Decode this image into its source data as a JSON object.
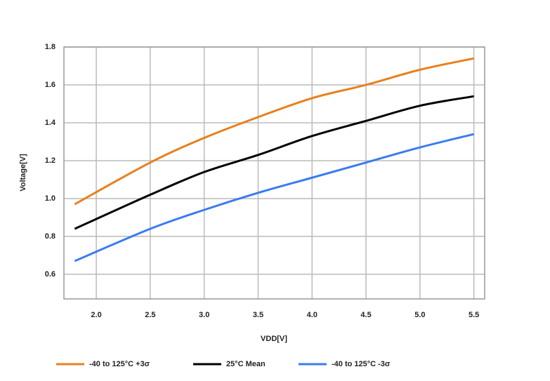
{
  "chart_data": {
    "type": "line",
    "xlabel": "VDD[V]",
    "ylabel": "Voltage[V]",
    "x": [
      1.8,
      2.5,
      3.0,
      3.5,
      4.0,
      4.5,
      5.0,
      5.5
    ],
    "series": [
      {
        "name": "-40 to 125°C +3σ",
        "color": "#e8801e",
        "values": [
          0.97,
          1.19,
          1.32,
          1.43,
          1.53,
          1.6,
          1.68,
          1.74
        ]
      },
      {
        "name": "25°C Mean",
        "color": "#000000",
        "values": [
          0.84,
          1.02,
          1.14,
          1.23,
          1.33,
          1.41,
          1.49,
          1.54
        ]
      },
      {
        "name": "-40 to 125°C -3σ",
        "color": "#3a7cf0",
        "values": [
          0.67,
          0.84,
          0.94,
          1.03,
          1.11,
          1.19,
          1.27,
          1.34
        ]
      }
    ],
    "xlim": [
      1.7,
      5.6
    ],
    "ylim": [
      0.47,
      1.8
    ],
    "xticks": [
      {
        "value": 2,
        "label": "2.0"
      },
      2.5,
      {
        "value": 3,
        "label": "3.0"
      },
      3.5,
      {
        "value": 4,
        "label": "4.0"
      },
      4.5,
      {
        "value": 5,
        "label": "5.0"
      },
      5.5
    ],
    "yticks": [
      0.6,
      0.8,
      {
        "value": 1,
        "label": "1.0"
      },
      1.2,
      1.4,
      1.6,
      1.8
    ],
    "grid": true,
    "legend": "bottom"
  }
}
